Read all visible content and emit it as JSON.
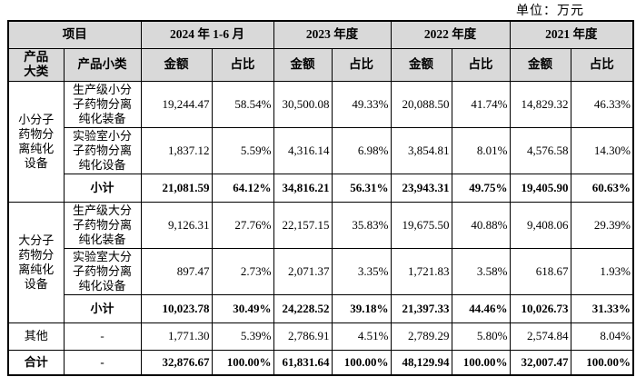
{
  "unit_label": "单位：万元",
  "header": {
    "project": "项目",
    "category": "产品\n大类",
    "subcategory": "产品小类",
    "amount": "金额",
    "ratio": "占比",
    "periods": [
      "2024 年 1-6 月",
      "2023 年度",
      "2022 年度",
      "2021 年度"
    ]
  },
  "groups": [
    {
      "category": "小分子\n药物分\n离纯化\n设备",
      "rows": [
        {
          "label": "生产级小分\n子药物分离\n纯化装备",
          "values": [
            "19,244.47",
            "58.54%",
            "30,500.08",
            "49.33%",
            "20,088.50",
            "41.74%",
            "14,829.32",
            "46.33%"
          ]
        },
        {
          "label": "实验室小分\n子药物分离\n纯化设备",
          "values": [
            "1,837.12",
            "5.59%",
            "4,316.14",
            "6.98%",
            "3,854.81",
            "8.01%",
            "4,576.58",
            "14.30%"
          ]
        },
        {
          "label": "小计",
          "values": [
            "21,081.59",
            "64.12%",
            "34,816.21",
            "56.31%",
            "23,943.31",
            "49.75%",
            "19,405.90",
            "60.63%"
          ]
        }
      ]
    },
    {
      "category": "大分子\n药物分\n离纯化\n设备",
      "rows": [
        {
          "label": "生产级大分\n子药物分离\n纯化装备",
          "values": [
            "9,126.31",
            "27.76%",
            "22,157.15",
            "35.83%",
            "19,675.50",
            "40.88%",
            "9,408.06",
            "29.39%"
          ]
        },
        {
          "label": "实验室大分\n子药物分离\n纯化设备",
          "values": [
            "897.47",
            "2.73%",
            "2,071.37",
            "3.35%",
            "1,721.83",
            "3.58%",
            "618.67",
            "1.93%"
          ]
        },
        {
          "label": "小计",
          "values": [
            "10,023.78",
            "30.49%",
            "24,228.52",
            "39.18%",
            "21,397.33",
            "44.46%",
            "10,026.73",
            "31.33%"
          ]
        }
      ]
    }
  ],
  "other_row": {
    "category": "其他",
    "label": "-",
    "values": [
      "1,771.30",
      "5.39%",
      "2,786.91",
      "4.51%",
      "2,789.29",
      "5.80%",
      "2,574.84",
      "8.04%"
    ]
  },
  "total_row": {
    "category": "合计",
    "label": "-",
    "values": [
      "32,876.67",
      "100.00%",
      "61,831.64",
      "100.00%",
      "48,129.94",
      "100.00%",
      "32,007.47",
      "100.00%"
    ]
  }
}
